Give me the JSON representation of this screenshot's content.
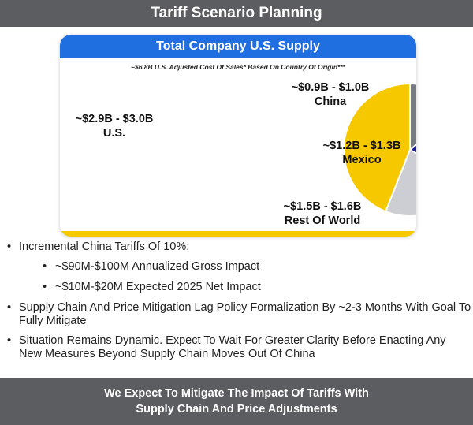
{
  "title": "Tariff Scenario Planning",
  "card": {
    "header": "Total Company U.S. Supply",
    "subtitle": "~$6.8B U.S. Adjusted Cost Of Sales* Based On Country Of Origin***"
  },
  "chart_data": {
    "type": "pie",
    "title": "Total Company U.S. Supply",
    "subtitle": "~$6.8B U.S. Adjusted Cost Of Sales* Based On Country Of Origin***",
    "units": "USD billions",
    "slices": [
      {
        "name": "China",
        "range_label": "~$0.9B - $1.0B",
        "value": 0.95,
        "color": "#767a84"
      },
      {
        "name": "Mexico",
        "range_label": "~$1.2B - $1.3B",
        "value": 1.25,
        "color": "#1e1a9c"
      },
      {
        "name": "Rest Of World",
        "range_label": "~$1.5B - $1.6B",
        "value": 1.55,
        "color": "#cdced3"
      },
      {
        "name": "U.S.",
        "range_label": "~$2.9B - $3.0B",
        "value": 2.95,
        "color": "#f5c800"
      }
    ]
  },
  "bullets": [
    {
      "level": 1,
      "text": "Incremental China Tariffs Of 10%:"
    },
    {
      "level": 2,
      "text": "~$90M-$100M Annualized Gross Impact"
    },
    {
      "level": 2,
      "text": "~$10M-$20M Expected 2025 Net Impact"
    },
    {
      "level": 1,
      "text": "Supply Chain And Price Mitigation Lag Policy Formalization By ~2-3 Months With Goal To Fully Mitigate"
    },
    {
      "level": 1,
      "text": "Situation Remains Dynamic. Expect To Wait For Greater Clarity Before Enacting Any New Measures Beyond Supply Chain Moves Out Of China"
    }
  ],
  "footer": {
    "line1": "We Expect To Mitigate The Impact Of Tariffs With",
    "line2": "Supply Chain And Price Adjustments"
  }
}
